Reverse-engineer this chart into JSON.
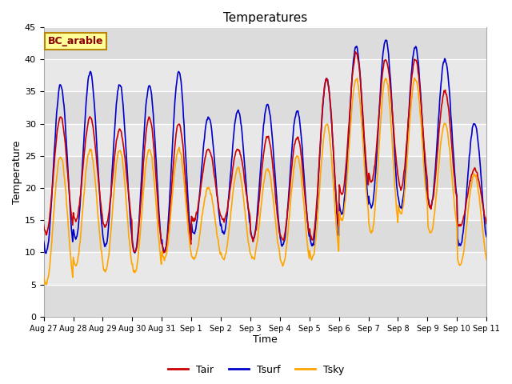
{
  "title": "Temperatures",
  "xlabel": "Time",
  "ylabel": "Temperature",
  "ylim": [
    0,
    45
  ],
  "annotation": "BC_arable",
  "tair_color": "#CC0000",
  "tsurf_color": "#0000CC",
  "tsky_color": "#FFA500",
  "plot_bg_color": "#E8E8E8",
  "fig_bg_color": "#FFFFFF",
  "band_colors": [
    "#DCDCDC",
    "#E8E8E8"
  ],
  "legend_labels": [
    "Tair",
    "Tsurf",
    "Tsky"
  ],
  "x_tick_labels": [
    "Aug 27",
    "Aug 28",
    "Aug 29",
    "Aug 30",
    "Aug 31",
    "Sep 1",
    "Sep 2",
    "Sep 3",
    "Sep 4",
    "Sep 5",
    "Sep 6",
    "Sep 7",
    "Sep 8",
    "Sep 9",
    "Sep 10",
    "Sep 11"
  ],
  "grid_color": "#FFFFFF",
  "line_width": 1.2,
  "daily_peaks_tair": [
    31,
    31,
    29,
    31,
    30,
    26,
    26,
    28,
    28,
    37,
    41,
    40,
    40,
    35,
    23
  ],
  "daily_mins_tair": [
    13,
    15,
    14,
    10,
    10,
    15,
    15,
    12,
    12,
    12,
    19,
    21,
    20,
    17,
    14
  ],
  "daily_peaks_tsurf": [
    36,
    38,
    36,
    36,
    38,
    31,
    32,
    33,
    32,
    37,
    42,
    43,
    42,
    40,
    30
  ],
  "daily_mins_tsurf": [
    10,
    12,
    11,
    10,
    10,
    13,
    13,
    12,
    11,
    11,
    16,
    17,
    17,
    17,
    11
  ],
  "daily_peaks_tsky": [
    25,
    26,
    26,
    26,
    26,
    20,
    23,
    23,
    25,
    30,
    37,
    37,
    37,
    30,
    22
  ],
  "daily_mins_tsky": [
    5,
    8,
    7,
    7,
    9,
    9,
    9,
    9,
    8,
    9,
    15,
    13,
    16,
    13,
    8
  ],
  "peak_hour": 14,
  "n_per_day": 48,
  "n_days": 15
}
